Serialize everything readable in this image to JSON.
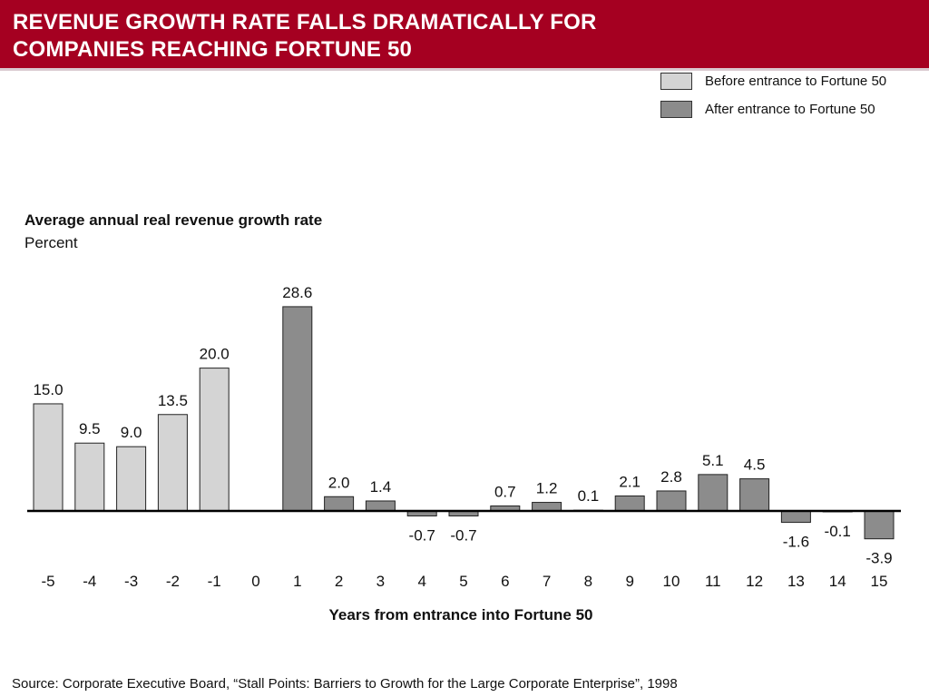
{
  "header": {
    "title_line1": "REVENUE GROWTH RATE FALLS DRAMATICALLY FOR",
    "title_line2": "COMPANIES REACHING FORTUNE 50"
  },
  "legend": [
    {
      "label": "Before entrance to Fortune 50",
      "color": "#d4d4d4"
    },
    {
      "label": "After entrance to Fortune 50",
      "color": "#8c8c8c"
    }
  ],
  "chart_data": {
    "type": "bar",
    "title": "Average annual real revenue growth rate",
    "ylabel": "Percent",
    "xlabel": "Years from entrance into Fortune 50",
    "categories": [
      "-5",
      "-4",
      "-3",
      "-2",
      "-1",
      "0",
      "1",
      "2",
      "3",
      "4",
      "5",
      "6",
      "7",
      "8",
      "9",
      "10",
      "11",
      "12",
      "13",
      "14",
      "15"
    ],
    "series": [
      {
        "name": "Before entrance to Fortune 50",
        "color": "#d4d4d4",
        "values": [
          15.0,
          9.5,
          9.0,
          13.5,
          20.0,
          null,
          null,
          null,
          null,
          null,
          null,
          null,
          null,
          null,
          null,
          null,
          null,
          null,
          null,
          null,
          null
        ]
      },
      {
        "name": "After entrance to Fortune 50",
        "color": "#8c8c8c",
        "values": [
          null,
          null,
          null,
          null,
          null,
          null,
          28.6,
          2.0,
          1.4,
          -0.7,
          -0.7,
          0.7,
          1.2,
          0.1,
          2.1,
          2.8,
          5.1,
          4.5,
          -1.6,
          -0.1,
          -3.9
        ]
      }
    ],
    "labels": [
      "15.0",
      "9.5",
      "9.0",
      "13.5",
      "20.0",
      "",
      "28.6",
      "2.0",
      "1.4",
      "-0.7",
      "-0.7",
      "0.7",
      "1.2",
      "0.1",
      "2.1",
      "2.8",
      "5.1",
      "4.5",
      "-1.6",
      "-0.1",
      "-3.9"
    ],
    "grid": false,
    "legend_position": "top-right"
  },
  "source": "Source: Corporate Executive Board, “Stall Points: Barriers to Growth for the Large Corporate Enterprise”, 1998"
}
